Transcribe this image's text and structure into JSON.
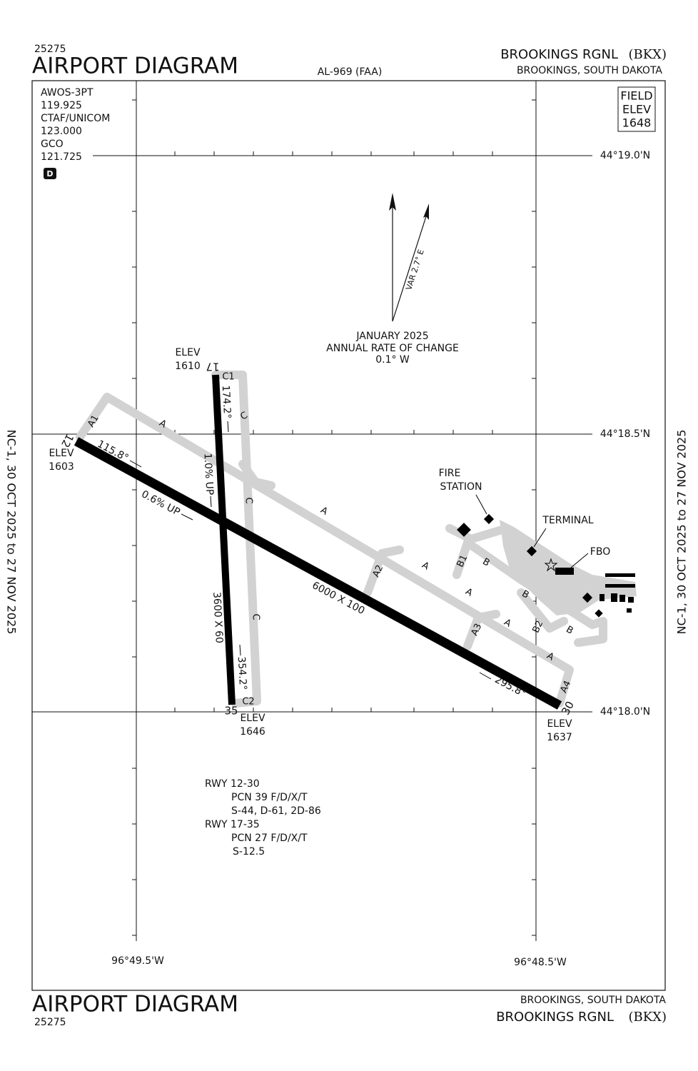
{
  "header": {
    "chart_number": "25275",
    "title": "AIRPORT DIAGRAM",
    "procedure": "AL-969 (FAA)",
    "airport": "BROOKINGS RGNL",
    "ident": "(BKX)",
    "location": "BROOKINGS, SOUTH DAKOTA"
  },
  "footer": {
    "title": "AIRPORT DIAGRAM",
    "chart_number": "25275",
    "location": "BROOKINGS, SOUTH DAKOTA",
    "airport": "BROOKINGS RGNL",
    "ident": "(BKX)"
  },
  "effective": {
    "left": "NC-1, 30 OCT 2025 to 27 NOV 2025",
    "right": "NC-1, 30 OCT 2025 to 27 NOV 2025"
  },
  "comms": [
    "AWOS-3PT",
    "119.925",
    "CTAF/UNICOM",
    "123.000",
    "GCO",
    "121.725"
  ],
  "airspace": "D",
  "field_elev": {
    "lines": [
      "FIELD",
      "ELEV"
    ],
    "value": "1648"
  },
  "coordinates": {
    "latitudes": [
      "44°19.0'N",
      "44°18.5'N",
      "44°18.0'N"
    ],
    "longitudes": [
      "96°49.5'W",
      "96°48.5'W"
    ]
  },
  "magnetic": {
    "variation": "VAR 2.7° E",
    "date": "JANUARY 2025",
    "rate_label": "ANNUAL RATE OF CHANGE",
    "rate": "0.1° W"
  },
  "runways": [
    {
      "size": "3600 X 60",
      "gradient": "1.0% UP",
      "ends": [
        {
          "number": "17",
          "heading": "174.2°",
          "elev_label": "ELEV",
          "elev": "1610"
        },
        {
          "number": "35",
          "heading": "354.2°",
          "elev_label": "ELEV",
          "elev": "1646"
        }
      ]
    },
    {
      "size": "6000 X 100",
      "gradient": "0.6% UP",
      "ends": [
        {
          "number": "12",
          "heading": "115.8°",
          "elev_label": "ELEV",
          "elev": "1603"
        },
        {
          "number": "30",
          "heading": "295.8°",
          "elev_label": "ELEV",
          "elev": "1637"
        }
      ]
    }
  ],
  "taxiways": [
    "A1",
    "A",
    "A",
    "A",
    "A",
    "A",
    "A",
    "A2",
    "A3",
    "A4",
    "B1",
    "B",
    "B",
    "B",
    "B2",
    "C",
    "C",
    "C",
    "C1",
    "C2"
  ],
  "buildings": {
    "fire_station": [
      "FIRE",
      "STATION"
    ],
    "terminal": "TERMINAL",
    "fbo": "FBO"
  },
  "runway_data": [
    "RWY 12-30",
    "PCN 39 F/D/X/T",
    "S-44, D-61, 2D-86",
    "RWY 17-35",
    "PCN 27 F/D/X/T",
    "S-12.5"
  ]
}
